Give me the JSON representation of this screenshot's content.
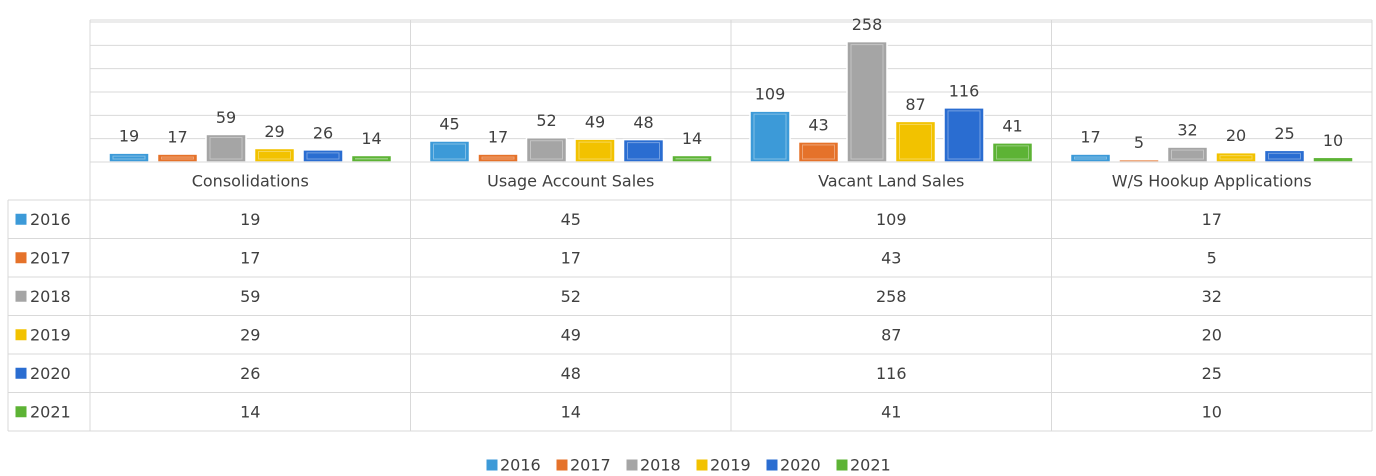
{
  "chart_data": {
    "type": "bar",
    "categories": [
      "Consolidations",
      "Usage Account Sales",
      "Vacant Land Sales",
      "W/S Hookup Applications"
    ],
    "series": [
      {
        "name": "2016",
        "color": "#3c9ad8",
        "values": [
          19,
          45,
          109,
          17
        ]
      },
      {
        "name": "2017",
        "color": "#e5722a",
        "values": [
          17,
          17,
          43,
          5
        ]
      },
      {
        "name": "2018",
        "color": "#a5a5a5",
        "values": [
          59,
          52,
          258,
          32
        ]
      },
      {
        "name": "2019",
        "color": "#f2c200",
        "values": [
          29,
          49,
          87,
          20
        ]
      },
      {
        "name": "2020",
        "color": "#2a6dd1",
        "values": [
          26,
          48,
          116,
          25
        ]
      },
      {
        "name": "2021",
        "color": "#5db335",
        "values": [
          14,
          14,
          41,
          10
        ]
      }
    ],
    "ylim": [
      0,
      300
    ],
    "yticks": [
      0,
      50,
      100,
      150,
      200,
      250,
      300
    ],
    "grid": true,
    "data_table": true,
    "legend": "bottom"
  }
}
